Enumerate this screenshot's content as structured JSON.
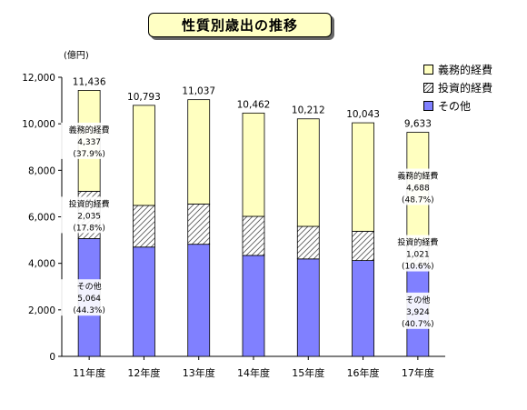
{
  "title": "性質別歳出の推移",
  "unit_label": "(億円)",
  "colors": {
    "gimu": "#ffffc0",
    "toshi_hatch": "#555555",
    "sonota": "#8080ff",
    "title_bg": "#ffffc4"
  },
  "legend": [
    {
      "key": "gimu",
      "label": "義務的経費"
    },
    {
      "key": "toshi",
      "label": "投資的経費"
    },
    {
      "key": "sonota",
      "label": "その他"
    }
  ],
  "chart_data": {
    "type": "bar",
    "stacked": true,
    "categories": [
      "11年度",
      "12年度",
      "13年度",
      "14年度",
      "15年度",
      "16年度",
      "17年度"
    ],
    "series": [
      {
        "name": "その他",
        "values": [
          5064,
          4700,
          4820,
          4340,
          4190,
          4120,
          3924
        ]
      },
      {
        "name": "投資的経費",
        "values": [
          2035,
          1790,
          1730,
          1680,
          1400,
          1260,
          1021
        ]
      },
      {
        "name": "義務的経費",
        "values": [
          4337,
          4303,
          4487,
          4442,
          4622,
          4663,
          4688
        ]
      }
    ],
    "totals": [
      "11,436",
      "10,793",
      "11,037",
      "10,462",
      "10,212",
      "10,043",
      "9,633"
    ],
    "ylim": [
      0,
      12000
    ],
    "yticks": [
      "0",
      "2,000",
      "4,000",
      "6,000",
      "8,000",
      "10,000",
      "12,000"
    ],
    "annotations": [
      {
        "category": "11年度",
        "series": "義務的経費",
        "label": "義務的経費",
        "value": "4,337",
        "pct": "(37.9%)"
      },
      {
        "category": "11年度",
        "series": "投資的経費",
        "label": "投資的経費",
        "value": "2,035",
        "pct": "(17.8%)"
      },
      {
        "category": "11年度",
        "series": "その他",
        "label": "その他",
        "value": "5,064",
        "pct": "(44.3%)"
      },
      {
        "category": "17年度",
        "series": "義務的経費",
        "label": "義務的経費",
        "value": "4,688",
        "pct": "(48.7%)"
      },
      {
        "category": "17年度",
        "series": "投資的経費",
        "label": "投資的経費",
        "value": "1,021",
        "pct": "(10.6%)"
      },
      {
        "category": "17年度",
        "series": "その他",
        "label": "その他",
        "value": "3,924",
        "pct": "(40.7%)"
      }
    ]
  }
}
